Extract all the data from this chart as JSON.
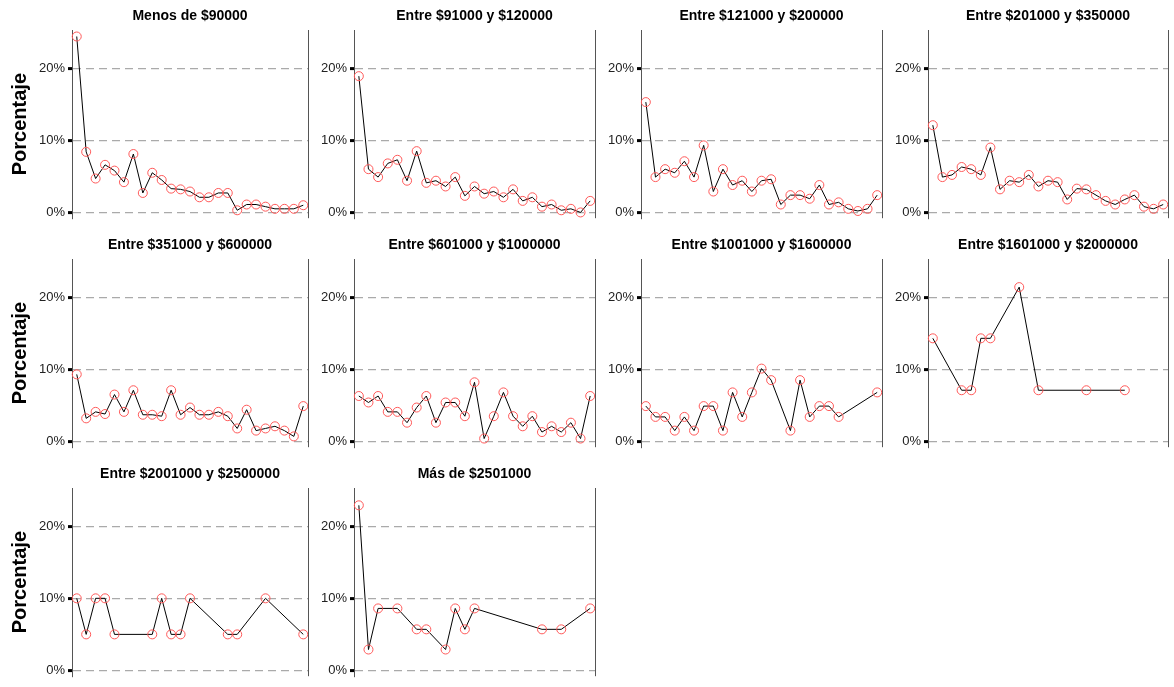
{
  "chart_data": [
    {
      "type": "line",
      "title": "Menos de $90000",
      "ylabel": "Porcentaje",
      "categories": [
        null,
        null,
        null,
        null,
        null,
        null,
        null,
        null,
        null,
        null,
        null,
        null,
        null,
        null,
        null,
        null,
        null,
        null,
        null,
        null,
        null,
        null,
        null,
        null,
        null
      ],
      "series": [
        {
          "color": "#ff5a5a",
          "values": [
            24.4,
            8.4,
            4.7,
            6.6,
            5.8,
            4.2,
            8.1,
            2.7,
            5.5,
            4.5,
            3.3,
            3.2,
            2.9,
            2.1,
            2.1,
            2.7,
            2.7,
            0.3,
            1.1,
            1.1,
            0.8,
            0.5,
            0.5,
            0.5,
            1.0
          ]
        }
      ],
      "ylim": [
        -0.8,
        25.3
      ],
      "yticks": [
        {
          "value": 0,
          "label": "0%"
        },
        {
          "value": 10,
          "label": "10%"
        },
        {
          "value": 20,
          "label": "20%"
        }
      ],
      "grid": "y",
      "marker": "circle",
      "tick_labels": "y"
    },
    {
      "type": "line",
      "title": "Entre $91000 y $120000",
      "categories": [
        null,
        null,
        null,
        null,
        null,
        null,
        null,
        null,
        null,
        null,
        null,
        null,
        null,
        null,
        null,
        null,
        null,
        null,
        null,
        null,
        null,
        null,
        null,
        null,
        null
      ],
      "series": [
        {
          "color": "#ff5a5a",
          "values": [
            18.9,
            6.0,
            4.9,
            6.8,
            7.3,
            4.4,
            8.5,
            4.1,
            4.4,
            3.6,
            4.9,
            2.3,
            3.6,
            2.6,
            2.9,
            2.1,
            3.2,
            1.6,
            2.1,
            0.8,
            1.1,
            0.3,
            0.5,
            0.0,
            1.6
          ]
        }
      ],
      "ylim": [
        -0.8,
        25.3
      ],
      "yticks": [
        {
          "value": 0,
          "label": "0%"
        },
        {
          "value": 10,
          "label": "10%"
        },
        {
          "value": 20,
          "label": "20%"
        }
      ],
      "grid": "y",
      "marker": "circle",
      "tick_labels": "y"
    },
    {
      "type": "line",
      "title": "Entre $121000 y $200000",
      "categories": [
        null,
        null,
        null,
        null,
        null,
        null,
        null,
        null,
        null,
        null,
        null,
        null,
        null,
        null,
        null,
        null,
        null,
        null,
        null,
        null,
        null,
        null,
        null,
        null,
        null
      ],
      "series": [
        {
          "color": "#ff5a5a",
          "values": [
            15.3,
            4.9,
            6.0,
            5.5,
            7.1,
            4.9,
            9.3,
            2.9,
            6.0,
            3.8,
            4.4,
            2.9,
            4.4,
            4.6,
            1.1,
            2.4,
            2.4,
            1.9,
            3.8,
            1.1,
            1.4,
            0.5,
            0.2,
            0.5,
            2.4
          ]
        }
      ],
      "ylim": [
        -0.8,
        25.3
      ],
      "yticks": [
        {
          "value": 0,
          "label": "0%"
        },
        {
          "value": 10,
          "label": "10%"
        },
        {
          "value": 20,
          "label": "20%"
        }
      ],
      "grid": "y",
      "marker": "circle",
      "tick_labels": "y"
    },
    {
      "type": "line",
      "title": "Entre $201000 y $350000",
      "categories": [
        null,
        null,
        null,
        null,
        null,
        null,
        null,
        null,
        null,
        null,
        null,
        null,
        null,
        null,
        null,
        null,
        null,
        null,
        null,
        null,
        null,
        null,
        null,
        null,
        null
      ],
      "series": [
        {
          "color": "#ff5a5a",
          "values": [
            12.1,
            4.9,
            5.2,
            6.3,
            6.0,
            5.2,
            9.0,
            3.2,
            4.4,
            4.2,
            5.2,
            3.6,
            4.4,
            4.2,
            1.8,
            3.3,
            3.2,
            2.4,
            1.6,
            1.1,
            1.8,
            2.4,
            0.8,
            0.5,
            1.1
          ]
        }
      ],
      "ylim": [
        -0.8,
        25.3
      ],
      "yticks": [
        {
          "value": 0,
          "label": "0%"
        },
        {
          "value": 10,
          "label": "10%"
        },
        {
          "value": 20,
          "label": "20%"
        }
      ],
      "grid": "y",
      "marker": "circle",
      "tick_labels": "y"
    },
    {
      "type": "line",
      "title": "Entre $351000 y $600000",
      "ylabel": "Porcentaje",
      "categories": [
        null,
        null,
        null,
        null,
        null,
        null,
        null,
        null,
        null,
        null,
        null,
        null,
        null,
        null,
        null,
        null,
        null,
        null,
        null,
        null,
        null,
        null,
        null,
        null,
        null
      ],
      "series": [
        {
          "color": "#ff5a5a",
          "values": [
            9.3,
            3.2,
            4.1,
            3.8,
            6.5,
            4.1,
            7.1,
            3.7,
            3.7,
            3.5,
            7.1,
            3.7,
            4.7,
            3.7,
            3.7,
            4.1,
            3.5,
            1.8,
            4.4,
            1.5,
            1.8,
            2.1,
            1.5,
            0.7,
            4.9
          ]
        }
      ],
      "ylim": [
        -0.8,
        25.3
      ],
      "yticks": [
        {
          "value": 0,
          "label": "0%"
        },
        {
          "value": 10,
          "label": "10%"
        },
        {
          "value": 20,
          "label": "20%"
        }
      ],
      "grid": "y",
      "marker": "circle",
      "tick_labels": "y"
    },
    {
      "type": "line",
      "title": "Entre $601000 y $1000000",
      "categories": [
        null,
        null,
        null,
        null,
        null,
        null,
        null,
        null,
        null,
        null,
        null,
        null,
        null,
        null,
        null,
        null,
        null,
        null,
        null,
        null,
        null,
        null,
        null,
        null,
        null
      ],
      "series": [
        {
          "color": "#ff5a5a",
          "values": [
            6.3,
            5.4,
            6.3,
            4.1,
            4.1,
            2.6,
            4.7,
            6.3,
            2.6,
            5.4,
            5.4,
            3.5,
            8.2,
            0.4,
            3.5,
            6.8,
            3.5,
            2.1,
            3.5,
            1.3,
            2.1,
            1.3,
            2.6,
            0.4,
            6.3
          ]
        }
      ],
      "ylim": [
        -0.8,
        25.3
      ],
      "yticks": [
        {
          "value": 0,
          "label": "0%"
        },
        {
          "value": 10,
          "label": "10%"
        },
        {
          "value": 20,
          "label": "20%"
        }
      ],
      "grid": "y",
      "marker": "circle",
      "tick_labels": "y"
    },
    {
      "type": "line",
      "title": "Entre $1001000 y $1600000",
      "categories": [
        null,
        null,
        null,
        null,
        null,
        null,
        null,
        null,
        null,
        null,
        null,
        null,
        null,
        null,
        null,
        null,
        null,
        null,
        null,
        null,
        null,
        null,
        null,
        null,
        null
      ],
      "series": [
        {
          "color": "#ff5a5a",
          "values": [
            4.9,
            3.4,
            3.4,
            1.5,
            3.4,
            1.5,
            4.9,
            4.9,
            1.5,
            6.8,
            3.4,
            6.8,
            10.1,
            8.5,
            null,
            1.5,
            8.5,
            3.4,
            4.9,
            4.9,
            3.4,
            null,
            null,
            null,
            6.8
          ]
        }
      ],
      "ylim": [
        -0.8,
        25.3
      ],
      "yticks": [
        {
          "value": 0,
          "label": "0%"
        },
        {
          "value": 10,
          "label": "10%"
        },
        {
          "value": 20,
          "label": "20%"
        }
      ],
      "grid": "y",
      "marker": "circle",
      "tick_labels": "y"
    },
    {
      "type": "line",
      "title": "Entre $1601000 y $2000000",
      "categories": [
        null,
        null,
        null,
        null,
        null,
        null,
        null,
        null,
        null,
        null,
        null,
        null,
        null,
        null,
        null,
        null,
        null,
        null,
        null,
        null,
        null,
        null,
        null,
        null,
        null
      ],
      "series": [
        {
          "color": "#ff5a5a",
          "values": [
            14.3,
            null,
            null,
            7.1,
            7.1,
            14.3,
            14.3,
            null,
            null,
            21.4,
            null,
            7.1,
            null,
            null,
            null,
            null,
            7.1,
            null,
            null,
            null,
            7.1,
            null,
            null,
            null,
            null
          ]
        }
      ],
      "ylim": [
        -0.8,
        25.3
      ],
      "yticks": [
        {
          "value": 0,
          "label": "0%"
        },
        {
          "value": 10,
          "label": "10%"
        },
        {
          "value": 20,
          "label": "20%"
        }
      ],
      "grid": "y",
      "marker": "circle",
      "tick_labels": "y"
    },
    {
      "type": "line",
      "title": "Entre $2001000 y $2500000",
      "ylabel": "Porcentaje",
      "categories": [
        null,
        null,
        null,
        null,
        null,
        null,
        null,
        null,
        null,
        null,
        null,
        null,
        null,
        null,
        null,
        null,
        null,
        null,
        null,
        null,
        null,
        null,
        null,
        null,
        null
      ],
      "series": [
        {
          "color": "#ff5a5a",
          "values": [
            10,
            5,
            10,
            10,
            5,
            null,
            null,
            null,
            5,
            10,
            5,
            5,
            10,
            null,
            null,
            null,
            5,
            5,
            null,
            null,
            10,
            null,
            null,
            null,
            5
          ]
        }
      ],
      "ylim": [
        -0.8,
        25.3
      ],
      "yticks": [
        {
          "value": 0,
          "label": "0%"
        },
        {
          "value": 10,
          "label": "10%"
        },
        {
          "value": 20,
          "label": "20%"
        }
      ],
      "grid": "y",
      "marker": "circle",
      "tick_labels": "y"
    },
    {
      "type": "line",
      "title": "Más de $2501000",
      "categories": [
        null,
        null,
        null,
        null,
        null,
        null,
        null,
        null,
        null,
        null,
        null,
        null,
        null,
        null,
        null,
        null,
        null,
        null,
        null,
        null,
        null,
        null,
        null,
        null,
        null
      ],
      "series": [
        {
          "color": "#ff5a5a",
          "values": [
            22.9,
            2.9,
            8.6,
            null,
            8.6,
            null,
            5.7,
            5.7,
            null,
            2.9,
            8.6,
            5.7,
            8.6,
            null,
            null,
            null,
            null,
            null,
            null,
            5.7,
            null,
            5.7,
            null,
            null,
            8.6
          ]
        }
      ],
      "ylim": [
        -0.8,
        25.3
      ],
      "yticks": [
        {
          "value": 0,
          "label": "0%"
        },
        {
          "value": 10,
          "label": "10%"
        },
        {
          "value": 20,
          "label": "20%"
        }
      ],
      "grid": "y",
      "marker": "circle",
      "tick_labels": "y"
    }
  ]
}
